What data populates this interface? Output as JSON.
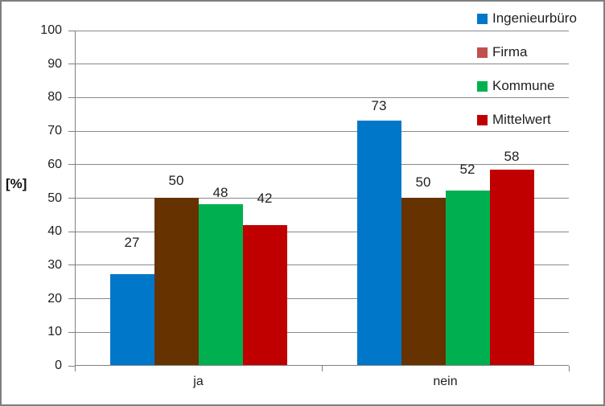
{
  "chart_data": {
    "type": "bar",
    "title": "",
    "ylabel": "[%]",
    "xlabel": "",
    "ylim": [
      0,
      100
    ],
    "ytick_step": 10,
    "yticks": [
      "0",
      "10",
      "20",
      "30",
      "40",
      "50",
      "60",
      "70",
      "80",
      "90",
      "100"
    ],
    "categories": [
      "ja",
      "nein"
    ],
    "series": [
      {
        "name": "Ingenieurbüro",
        "color": "#0077C8",
        "legend_color": "#0077C8",
        "values": [
          27,
          73
        ],
        "labels": [
          "27",
          "73"
        ]
      },
      {
        "name": "Firma",
        "color": "#663200",
        "legend_color": "#C0504D",
        "values": [
          50,
          50
        ],
        "labels": [
          "50",
          "50"
        ]
      },
      {
        "name": "Kommune",
        "color": "#00B050",
        "legend_color": "#00B050",
        "values": [
          48,
          52
        ],
        "labels": [
          "48",
          "52"
        ]
      },
      {
        "name": "Mittelwert",
        "color": "#C00000",
        "legend_color": "#C00000",
        "values": [
          41.7,
          58.3
        ],
        "labels": [
          "42",
          "58"
        ]
      }
    ],
    "grid": true,
    "data_labels": true,
    "legend_position": "top-right",
    "colors": {
      "gridline": "#898989",
      "axis": "#808080",
      "text": "#1F1F1F",
      "background": "#FFFFFF",
      "frame": "#7F7F7F"
    }
  }
}
